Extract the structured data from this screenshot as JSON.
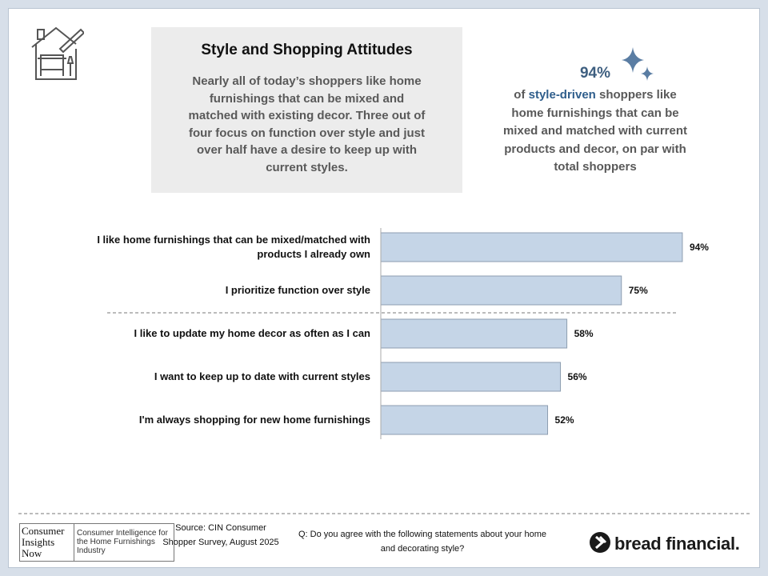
{
  "title": "Style and Shopping Attitudes",
  "summary": "Nearly all of today’s shoppers like home furnishings that can be mixed and matched with existing decor. Three out of four focus on function over style and just over half have a desire to keep up with current styles.",
  "callout": {
    "stat": "94%",
    "lead": "of",
    "highlight": "style-driven",
    "text": "shoppers like home furnishings that can be mixed and matched with current products and decor, on par with total shoppers"
  },
  "chart_data": {
    "type": "bar",
    "orientation": "horizontal",
    "categories": [
      "I like home furnishings that can be mixed/matched with products I already own",
      "I prioritize function over style",
      "I like to update my home decor as often as I can",
      "I want to keep up to date with current styles",
      "I'm always shopping for new home furnishings"
    ],
    "values": [
      94,
      75,
      58,
      56,
      52
    ],
    "value_labels": [
      "94%",
      "75%",
      "58%",
      "56%",
      "52%"
    ],
    "color": "#c5d5e7",
    "xlim": [
      0,
      100
    ]
  },
  "footer": {
    "logo_name": "Consumer Insights Now",
    "logo_tagline": "Consumer Intelligence for the Home Furnishings Industry",
    "source": "Source: CIN Consumer Shopper Survey, August 2025",
    "question": "Q: Do you agree with the following statements about your home and decorating style?",
    "brand": "bread financial."
  }
}
